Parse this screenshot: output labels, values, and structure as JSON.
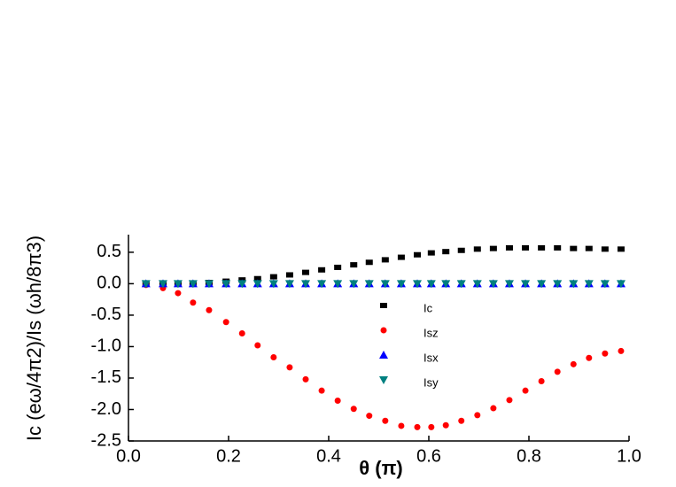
{
  "chart_data": {
    "type": "scatter",
    "xlabel": "θ (π)",
    "ylabel": "Ic (eω/4π2)/Is (ωh/8π3)",
    "x": [
      0.035,
      0.069,
      0.099,
      0.129,
      0.161,
      0.195,
      0.227,
      0.258,
      0.29,
      0.322,
      0.354,
      0.386,
      0.418,
      0.45,
      0.481,
      0.513,
      0.545,
      0.577,
      0.605,
      0.634,
      0.665,
      0.697,
      0.729,
      0.761,
      0.793,
      0.825,
      0.857,
      0.889,
      0.92,
      0.952,
      0.984
    ],
    "series": [
      {
        "name": "Ic",
        "color": "#000000",
        "marker": "square",
        "values": [
          0,
          0,
          0,
          0.01,
          0.02,
          0.04,
          0.06,
          0.08,
          0.11,
          0.14,
          0.18,
          0.22,
          0.26,
          0.3,
          0.34,
          0.38,
          0.42,
          0.46,
          0.49,
          0.51,
          0.53,
          0.55,
          0.56,
          0.57,
          0.57,
          0.57,
          0.57,
          0.56,
          0.56,
          0.55,
          0.55
        ]
      },
      {
        "name": "Isz",
        "color": "#ff0000",
        "marker": "circle",
        "values": [
          -0.02,
          -0.07,
          -0.15,
          -0.3,
          -0.42,
          -0.61,
          -0.79,
          -0.98,
          -1.17,
          -1.33,
          -1.52,
          -1.7,
          -1.86,
          -1.99,
          -2.1,
          -2.18,
          -2.26,
          -2.28,
          -2.28,
          -2.25,
          -2.18,
          -2.09,
          -1.98,
          -1.85,
          -1.7,
          -1.55,
          -1.4,
          -1.28,
          -1.18,
          -1.11,
          -1.07
        ]
      },
      {
        "name": "Isx",
        "color": "#0000ff",
        "marker": "triangle-up",
        "values": [
          0,
          0,
          0,
          0,
          0,
          0,
          0,
          0,
          0,
          0,
          0,
          0,
          0,
          0,
          0,
          0,
          0,
          0,
          0,
          0,
          0,
          0,
          0,
          0,
          0,
          0,
          0,
          0,
          0,
          0,
          0
        ]
      },
      {
        "name": "Isy",
        "color": "#008080",
        "marker": "triangle-down",
        "values": [
          0,
          0,
          0,
          0,
          0,
          0,
          0,
          0,
          0,
          0,
          0,
          0,
          0,
          0,
          0,
          0,
          0,
          0,
          0,
          0,
          0,
          0,
          0,
          0,
          0,
          0,
          0,
          0,
          0,
          0,
          0
        ]
      }
    ],
    "xlim": [
      0,
      1
    ],
    "xticks": [
      {
        "value": 0,
        "label": "0.0"
      },
      0.2,
      0.4,
      0.6,
      0.8,
      {
        "value": 1,
        "label": "1.0"
      }
    ],
    "ylim": [
      -2.5,
      0.78
    ],
    "yticks": [
      {
        "value": -2.5,
        "label": "-2.5"
      },
      {
        "value": -2,
        "label": "-2.0"
      },
      {
        "value": -1.5,
        "label": "-1.5"
      },
      {
        "value": -1,
        "label": "-1.0"
      },
      {
        "value": -0.5,
        "label": "-0.5"
      },
      {
        "value": 0,
        "label": "0.0"
      },
      0.5
    ]
  }
}
